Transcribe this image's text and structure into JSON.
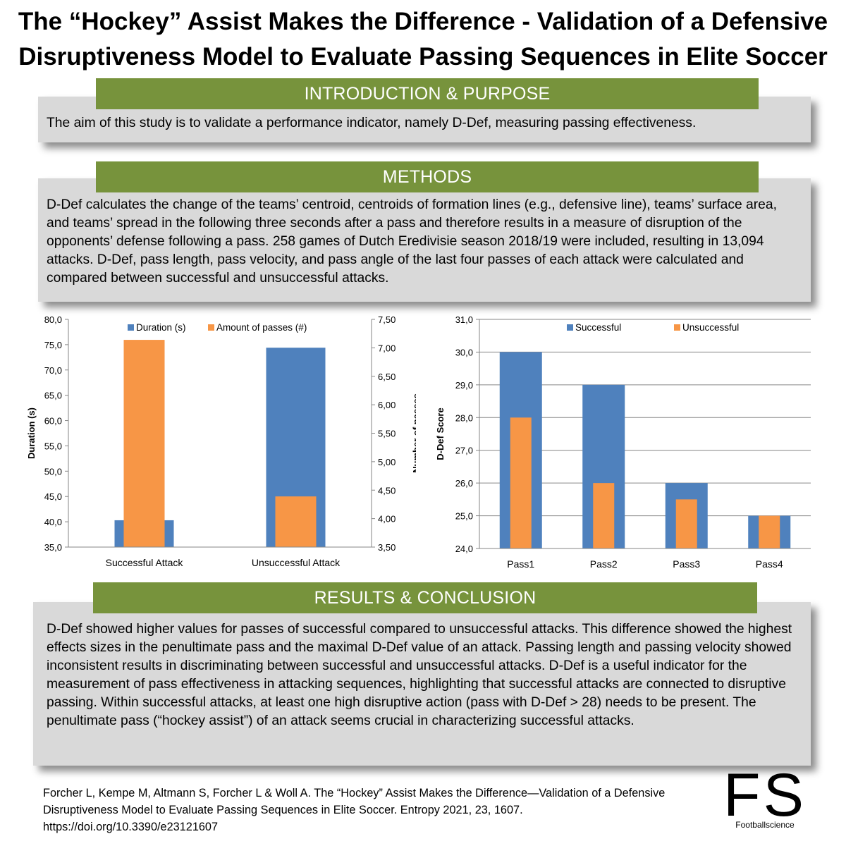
{
  "title": {
    "line1": "The “Hockey” Assist Makes the Difference - Validation of a Defensive",
    "line2": "Disruptiveness Model to Evaluate Passing Sequences in Elite Soccer"
  },
  "intro": {
    "heading": "INTRODUCTION & PURPOSE",
    "text": "The aim of this study is to validate a performance indicator, namely D-Def, measuring passing effectiveness."
  },
  "methods": {
    "heading": "METHODS",
    "text": "D-Def calculates the change of the teams’ centroid, centroids of formation lines (e.g., defensive line), teams’ surface area, and teams’ spread in the following three seconds after a pass and therefore results in a measure of disruption of the opponents’ defense following a pass. 258 games of Dutch Eredivisie season 2018/19 were included, resulting in 13,094 attacks. D-Def, pass length, pass velocity, and pass angle of the last four passes of each attack were calculated and compared between successful and unsuccessful attacks."
  },
  "results": {
    "heading": "RESULTS & CONCLUSION",
    "text": "D-Def showed higher values for passes of successful compared to unsuccessful attacks. This difference showed the highest effects sizes in the penultimate pass and the maximal D-Def value of an attack. Passing length and passing velocity showed inconsistent results in discriminating between successful and unsuccessful attacks. D-Def is a useful indicator for the measurement of pass effectiveness in attacking sequences, highlighting that successful attacks are connected to disruptive passing. Within successful attacks, at least one high disruptive action (pass with D-Def > 28) needs to be present. The penultimate pass (“hockey assist”) of an attack seems crucial in characterizing successful attacks."
  },
  "citation": {
    "text": "Forcher L, Kempe M, Altmann S, Forcher L & Woll A. The “Hockey” Assist Makes the Difference—Validation of a Defensive Disruptiveness Model to Evaluate Passing Sequences in Elite Soccer. Entropy 2021, 23, 1607.",
    "doi": "https://doi.org/10.3390/e23121607"
  },
  "logo": {
    "letters": "FS",
    "name": "Footballscience"
  },
  "colors": {
    "green": "#77933c",
    "panel": "#d9d9d9",
    "blue": "#4f81bd",
    "orange": "#f79646"
  },
  "chart_data": [
    {
      "type": "bar",
      "categories": [
        "Successful Attack",
        "Unsuccessful Attack"
      ],
      "series": [
        {
          "name": "Duration (s)",
          "axis": "left",
          "values": [
            40.3,
            74.4
          ],
          "color": "#4f81bd"
        },
        {
          "name": "Amount of passes (#)",
          "axis": "right",
          "values": [
            7.14,
            4.39
          ],
          "color": "#f79646"
        }
      ],
      "ylabel": "Duration (s)",
      "ylim": [
        35,
        80
      ],
      "yticks": [
        "35,0",
        "40,0",
        "45,0",
        "50,0",
        "55,0",
        "60,0",
        "65,0",
        "70,0",
        "75,0",
        "80,0"
      ],
      "y2label": "Number of passes",
      "y2lim": [
        3.5,
        7.5
      ],
      "y2ticks": [
        "3,50",
        "4,00",
        "4,50",
        "5,00",
        "5,50",
        "6,00",
        "6,50",
        "7,00",
        "7,50"
      ],
      "grid": false,
      "legend": "top"
    },
    {
      "type": "bar",
      "categories": [
        "Pass1",
        "Pass2",
        "Pass3",
        "Pass4"
      ],
      "series": [
        {
          "name": "Successful",
          "values": [
            30.0,
            29.0,
            26.0,
            25.0
          ],
          "color": "#4f81bd"
        },
        {
          "name": "Unsuccessful",
          "values": [
            28.0,
            26.0,
            25.5,
            25.0
          ],
          "color": "#f79646"
        }
      ],
      "ylabel": "D-Def Score",
      "ylim": [
        24,
        31
      ],
      "yticks": [
        "24,0",
        "25,0",
        "26,0",
        "27,0",
        "28,0",
        "29,0",
        "30,0",
        "31,0"
      ],
      "grid": true,
      "legend": "top"
    }
  ]
}
